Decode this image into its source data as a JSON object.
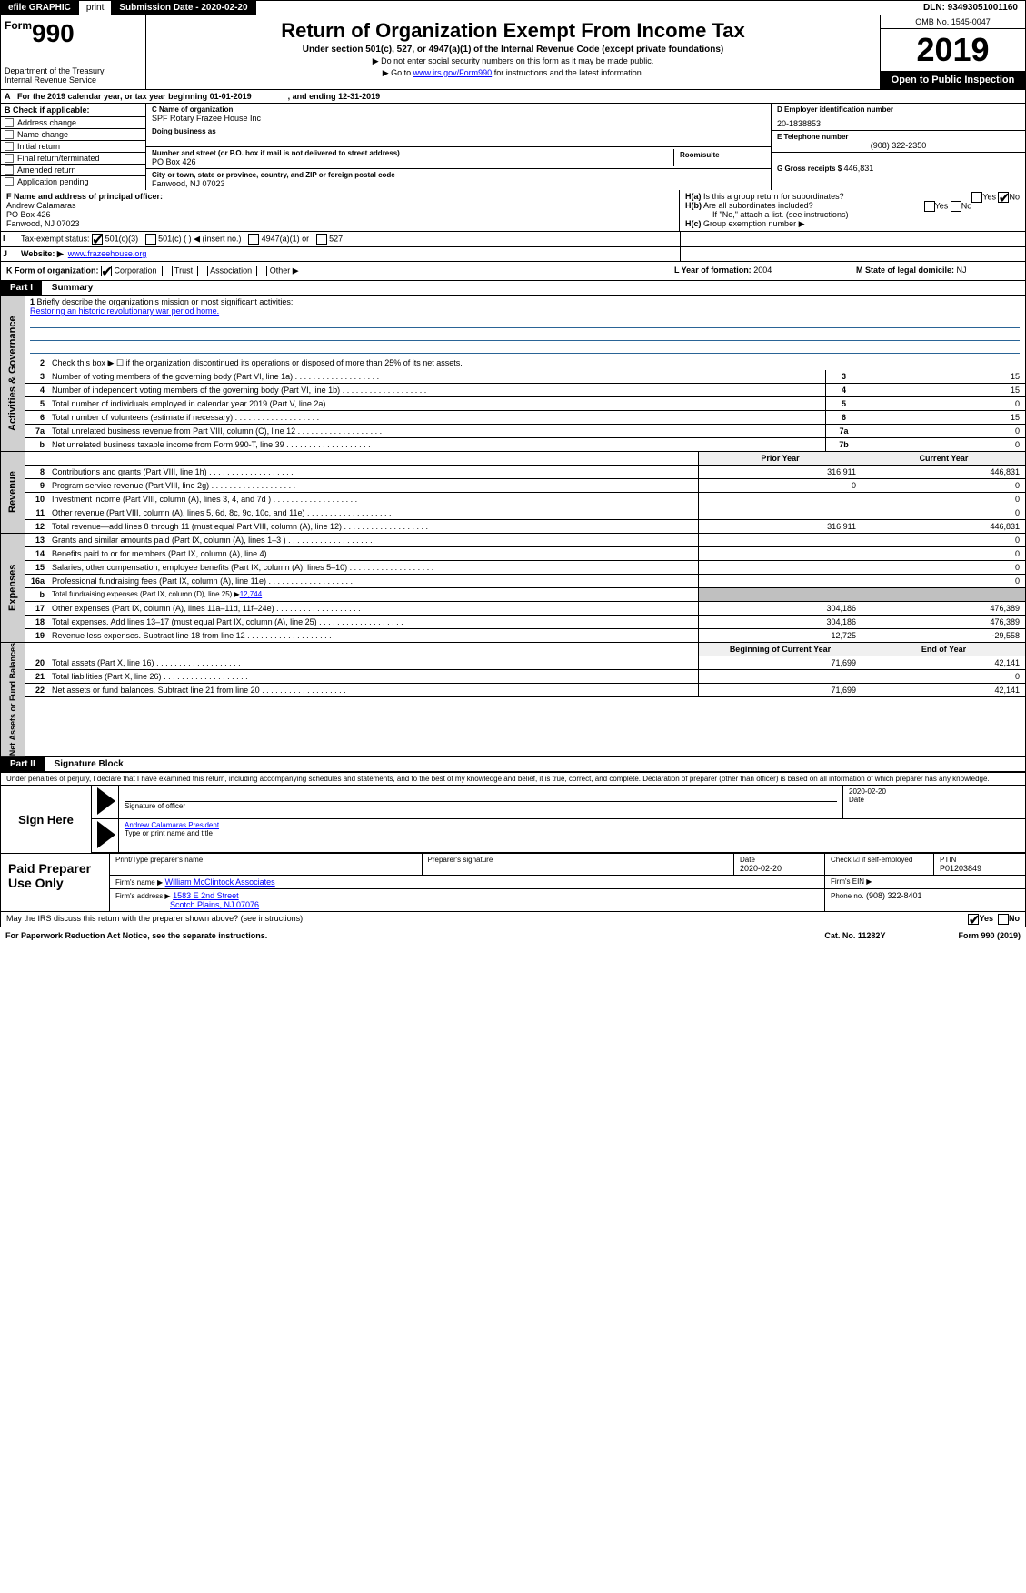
{
  "efile": {
    "graphic": "efile GRAPHIC",
    "print": "print",
    "submission_label": "Submission Date - 2020-02-20",
    "dln": "DLN: 93493051001160"
  },
  "header": {
    "form_prefix": "Form",
    "form_number": "990",
    "dept": "Department of the Treasury\nInternal Revenue Service",
    "title": "Return of Organization Exempt From Income Tax",
    "subtitle": "Under section 501(c), 527, or 4947(a)(1) of the Internal Revenue Code (except private foundations)",
    "note1": "▶ Do not enter social security numbers on this form as it may be made public.",
    "note2_pre": "▶ Go to ",
    "note2_link": "www.irs.gov/Form990",
    "note2_post": " for instructions and the latest information.",
    "omb": "OMB No. 1545-0047",
    "year": "2019",
    "open_public": "Open to Public Inspection"
  },
  "row_a": {
    "label": "A",
    "text": "For the 2019 calendar year, or tax year beginning 01-01-2019",
    "text2": ", and ending 12-31-2019"
  },
  "col_b": {
    "header": "B Check if applicable:",
    "items": [
      "Address change",
      "Name change",
      "Initial return",
      "Final return/terminated",
      "Amended return",
      "Application pending"
    ]
  },
  "col_c": {
    "name_label": "C Name of organization",
    "name": "SPF Rotary Frazee House Inc",
    "dba_label": "Doing business as",
    "dba": "",
    "addr_label": "Number and street (or P.O. box if mail is not delivered to street address)",
    "addr": "PO Box 426",
    "room_label": "Room/suite",
    "city_label": "City or town, state or province, country, and ZIP or foreign postal code",
    "city": "Fanwood, NJ  07023"
  },
  "col_d": {
    "ein_label": "D Employer identification number",
    "ein": "20-1838853",
    "phone_label": "E Telephone number",
    "phone": "(908) 322-2350",
    "gross_label": "G Gross receipts $",
    "gross": "446,831"
  },
  "row_f": {
    "label": "F Name and address of principal officer:",
    "name": "Andrew Calamaras",
    "addr1": "PO Box 426",
    "addr2": "Fanwood, NJ  07023"
  },
  "row_h": {
    "ha_label": "H(a)",
    "ha_text": "Is this a group return for subordinates?",
    "hb_label": "H(b)",
    "hb_text": "Are all subordinates included?",
    "hb_note": "If \"No,\" attach a list. (see instructions)",
    "hc_label": "H(c)",
    "hc_text": "Group exemption number ▶",
    "yes": "Yes",
    "no": "No"
  },
  "row_i": {
    "label": "I",
    "text": "Tax-exempt status:",
    "opt1": "501(c)(3)",
    "opt2": "501(c) (   ) ◀ (insert no.)",
    "opt3": "4947(a)(1) or",
    "opt4": "527"
  },
  "row_j": {
    "label": "J",
    "text": "Website: ▶",
    "url": "www.frazeehouse.org"
  },
  "row_k": {
    "label": "K Form of organization:",
    "opts": [
      "Corporation",
      "Trust",
      "Association",
      "Other ▶"
    ]
  },
  "row_l": {
    "label": "L Year of formation:",
    "val": "2004"
  },
  "row_m": {
    "label": "M State of legal domicile:",
    "val": "NJ"
  },
  "part1": {
    "tag": "Part I",
    "title": "Summary"
  },
  "summary": {
    "l1_label": "1",
    "l1_text": "Briefly describe the organization's mission or most significant activities:",
    "l1_val": "Restoring an historic revolutionary war period home.",
    "l2_label": "2",
    "l2_text": "Check this box ▶ ☐ if the organization discontinued its operations or disposed of more than 25% of its net assets.",
    "lines_boxed": [
      {
        "n": "3",
        "t": "Number of voting members of the governing body (Part VI, line 1a)",
        "box": "3",
        "v": "15"
      },
      {
        "n": "4",
        "t": "Number of independent voting members of the governing body (Part VI, line 1b)",
        "box": "4",
        "v": "15"
      },
      {
        "n": "5",
        "t": "Total number of individuals employed in calendar year 2019 (Part V, line 2a)",
        "box": "5",
        "v": "0"
      },
      {
        "n": "6",
        "t": "Total number of volunteers (estimate if necessary)",
        "box": "6",
        "v": "15"
      },
      {
        "n": "7a",
        "t": "Total unrelated business revenue from Part VIII, column (C), line 12",
        "box": "7a",
        "v": "0"
      },
      {
        "n": "b",
        "t": "Net unrelated business taxable income from Form 990-T, line 39",
        "box": "7b",
        "v": "0"
      }
    ],
    "col_hdr_prior": "Prior Year",
    "col_hdr_curr": "Current Year",
    "revenue": [
      {
        "n": "8",
        "t": "Contributions and grants (Part VIII, line 1h)",
        "p": "316,911",
        "c": "446,831"
      },
      {
        "n": "9",
        "t": "Program service revenue (Part VIII, line 2g)",
        "p": "0",
        "c": "0"
      },
      {
        "n": "10",
        "t": "Investment income (Part VIII, column (A), lines 3, 4, and 7d )",
        "p": "",
        "c": "0"
      },
      {
        "n": "11",
        "t": "Other revenue (Part VIII, column (A), lines 5, 6d, 8c, 9c, 10c, and 11e)",
        "p": "",
        "c": "0"
      },
      {
        "n": "12",
        "t": "Total revenue—add lines 8 through 11 (must equal Part VIII, column (A), line 12)",
        "p": "316,911",
        "c": "446,831"
      }
    ],
    "expenses": [
      {
        "n": "13",
        "t": "Grants and similar amounts paid (Part IX, column (A), lines 1–3 )",
        "p": "",
        "c": "0"
      },
      {
        "n": "14",
        "t": "Benefits paid to or for members (Part IX, column (A), line 4)",
        "p": "",
        "c": "0"
      },
      {
        "n": "15",
        "t": "Salaries, other compensation, employee benefits (Part IX, column (A), lines 5–10)",
        "p": "",
        "c": "0"
      },
      {
        "n": "16a",
        "t": "Professional fundraising fees (Part IX, column (A), line 11e)",
        "p": "",
        "c": "0"
      }
    ],
    "l16b_n": "b",
    "l16b_t": "Total fundraising expenses (Part IX, column (D), line 25) ▶",
    "l16b_v": "12,744",
    "expenses2": [
      {
        "n": "17",
        "t": "Other expenses (Part IX, column (A), lines 11a–11d, 11f–24e)",
        "p": "304,186",
        "c": "476,389"
      },
      {
        "n": "18",
        "t": "Total expenses. Add lines 13–17 (must equal Part IX, column (A), line 25)",
        "p": "304,186",
        "c": "476,389"
      },
      {
        "n": "19",
        "t": "Revenue less expenses. Subtract line 18 from line 12",
        "p": "12,725",
        "c": "-29,558"
      }
    ],
    "col_hdr_begin": "Beginning of Current Year",
    "col_hdr_end": "End of Year",
    "netassets": [
      {
        "n": "20",
        "t": "Total assets (Part X, line 16)",
        "p": "71,699",
        "c": "42,141"
      },
      {
        "n": "21",
        "t": "Total liabilities (Part X, line 26)",
        "p": "",
        "c": "0"
      },
      {
        "n": "22",
        "t": "Net assets or fund balances. Subtract line 21 from line 20",
        "p": "71,699",
        "c": "42,141"
      }
    ]
  },
  "side_labels": {
    "gov": "Activities & Governance",
    "rev": "Revenue",
    "exp": "Expenses",
    "net": "Net Assets or Fund Balances"
  },
  "part2": {
    "tag": "Part II",
    "title": "Signature Block"
  },
  "perjury": "Under penalties of perjury, I declare that I have examined this return, including accompanying schedules and statements, and to the best of my knowledge and belief, it is true, correct, and complete. Declaration of preparer (other than officer) is based on all information of which preparer has any knowledge.",
  "sign": {
    "label": "Sign Here",
    "sig_label": "Signature of officer",
    "date_label": "Date",
    "date": "2020-02-20",
    "name": "Andrew Calamaras President",
    "name_label": "Type or print name and title"
  },
  "paid": {
    "label": "Paid Preparer Use Only",
    "col_name": "Print/Type preparer's name",
    "col_sig": "Preparer's signature",
    "col_date": "Date",
    "date": "2020-02-20",
    "self_emp": "Check ☑ if self-employed",
    "ptin_label": "PTIN",
    "ptin": "P01203849",
    "firm_name_label": "Firm's name   ▶",
    "firm_name": "William McClintock Associates",
    "firm_ein_label": "Firm's EIN ▶",
    "firm_addr_label": "Firm's address ▶",
    "firm_addr1": "1583 E 2nd Street",
    "firm_addr2": "Scotch Plains, NJ  07076",
    "firm_phone_label": "Phone no.",
    "firm_phone": "(908) 322-8401"
  },
  "discuss": {
    "text": "May the IRS discuss this return with the preparer shown above? (see instructions)",
    "yes": "Yes",
    "no": "No"
  },
  "footer": {
    "pra": "For Paperwork Reduction Act Notice, see the separate instructions.",
    "cat": "Cat. No. 11282Y",
    "form": "Form 990 (2019)"
  }
}
